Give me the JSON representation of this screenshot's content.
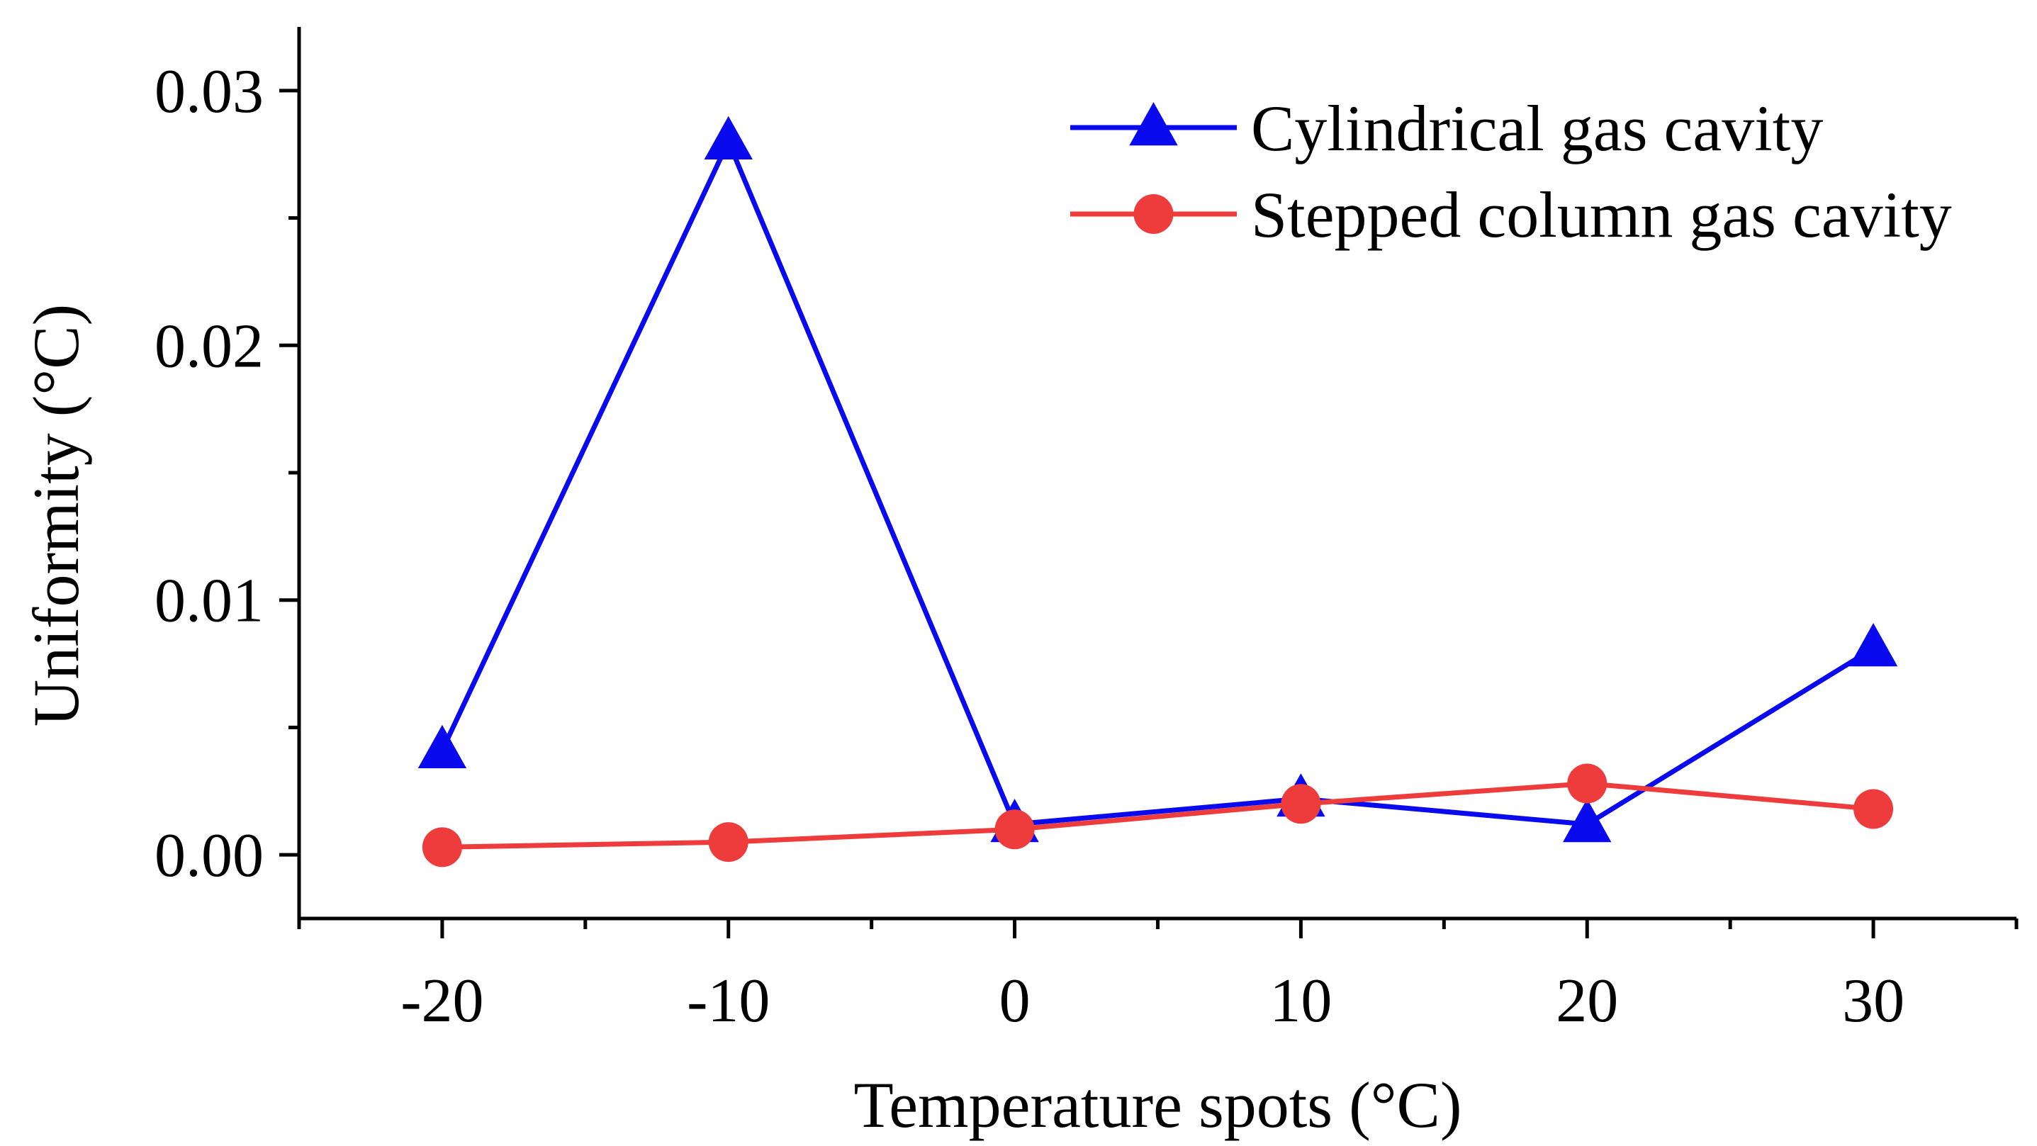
{
  "chart_data": {
    "type": "line",
    "title": "",
    "xlabel": "Temperature spots (°C)",
    "ylabel": "Uniformity (°C)",
    "x": [
      -20,
      -10,
      0,
      10,
      20,
      30
    ],
    "xlim": [
      -25,
      35
    ],
    "ylim": [
      -0.0025,
      0.0325
    ],
    "x_ticks": [
      -20,
      -10,
      0,
      10,
      20,
      30
    ],
    "x_tick_labels": [
      "-20",
      "-10",
      "0",
      "10",
      "20",
      "30"
    ],
    "y_ticks": [
      0.0,
      0.01,
      0.02,
      0.03
    ],
    "y_tick_labels": [
      "0.00",
      "0.01",
      "0.02",
      "0.03"
    ],
    "grid": false,
    "legend_position": "top-right",
    "series": [
      {
        "name": "Cylindrical gas cavity",
        "color": "#0a0aef",
        "marker": "triangle",
        "values": [
          0.0041,
          0.028,
          0.0012,
          0.0022,
          0.0012,
          0.0081
        ]
      },
      {
        "name": "Stepped column gas cavity",
        "color": "#ee3b3b",
        "marker": "circle",
        "values": [
          0.0003,
          0.0005,
          0.001,
          0.002,
          0.0028,
          0.0018
        ]
      }
    ]
  }
}
